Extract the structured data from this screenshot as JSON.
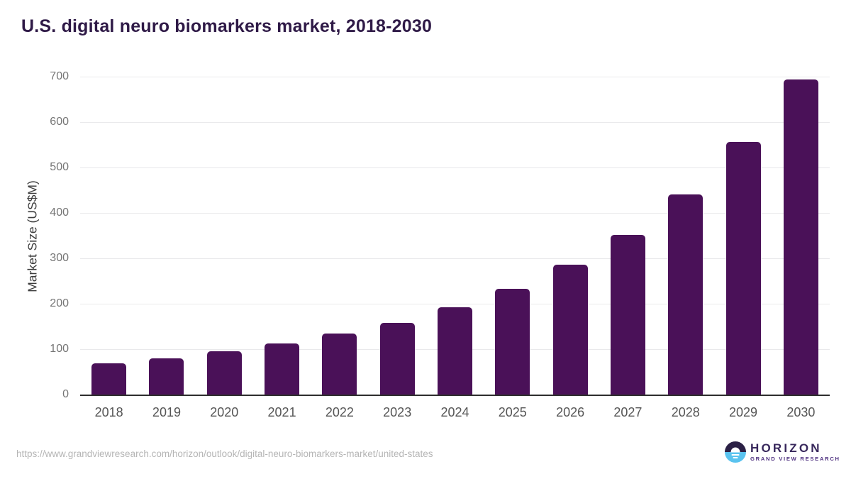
{
  "title": "U.S. digital neuro biomarkers market, 2018-2030",
  "chart_data": {
    "type": "bar",
    "categories": [
      "2018",
      "2019",
      "2020",
      "2021",
      "2022",
      "2023",
      "2024",
      "2025",
      "2026",
      "2027",
      "2028",
      "2029",
      "2030"
    ],
    "values": [
      68,
      80,
      96,
      113,
      134,
      158,
      192,
      233,
      286,
      352,
      441,
      557,
      694
    ],
    "title": "U.S. digital neuro biomarkers market, 2018-2030",
    "xlabel": "",
    "ylabel": "Market Size (US$M)",
    "ylim": [
      0,
      700
    ],
    "yticks": [
      0,
      100,
      200,
      300,
      400,
      500,
      600,
      700
    ],
    "grid": true,
    "legend": "none",
    "bar_color": "#4a1158"
  },
  "colors": {
    "bar": "#4a1158",
    "title_text": "#2f1a47",
    "axis_line": "#2e2e2e",
    "gridline": "#e9e9eb",
    "tick_label": "#757575",
    "x_label": "#555555",
    "url_text": "#b5b5b5",
    "logo_dark": "#2b2045",
    "logo_blue": "#5ac3ef",
    "logo_text": "#38285c"
  },
  "footer": {
    "source_url": "https://www.grandviewresearch.com/horizon/outlook/digital-neuro-biomarkers-market/united-states",
    "logo": {
      "wordmark": "HORIZON",
      "subtitle": "GRAND VIEW RESEARCH"
    }
  }
}
